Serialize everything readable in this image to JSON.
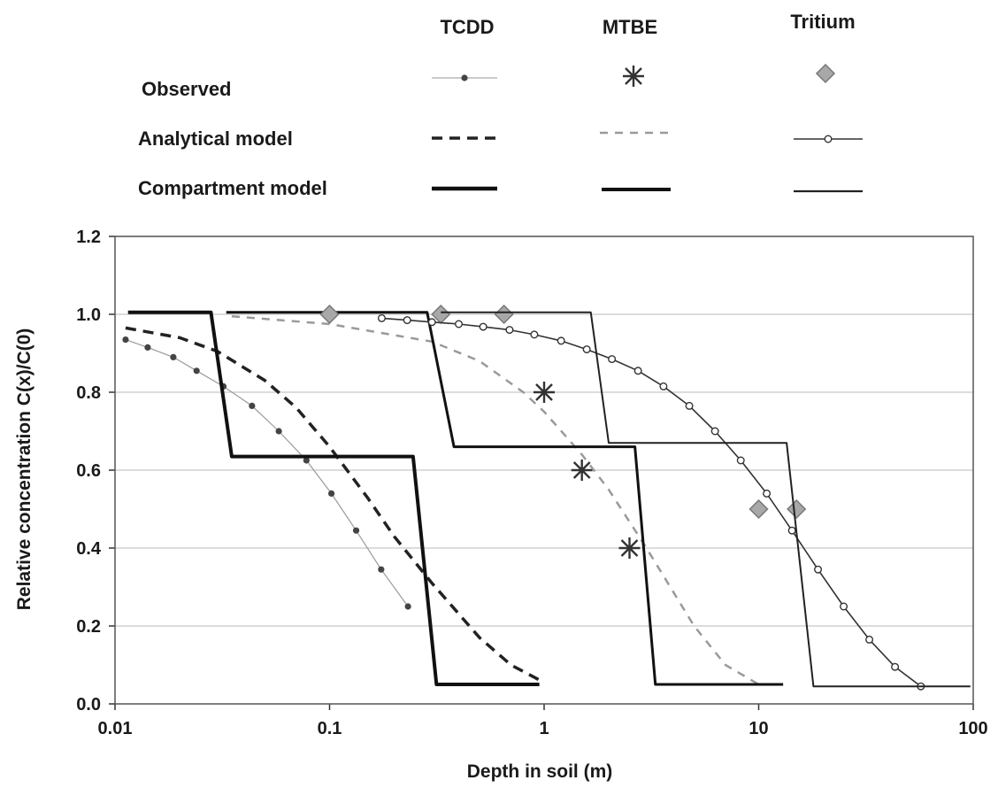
{
  "chart_data": {
    "type": "line",
    "xlabel": "Depth in soil (m)",
    "ylabel": "Relative concentration C(x)/C(0)",
    "x_scale": "log",
    "xlim": [
      0.01,
      100
    ],
    "ylim": [
      0.0,
      1.2
    ],
    "x_ticks": [
      "0.01",
      "0.1",
      "1",
      "10",
      "100"
    ],
    "y_ticks": [
      "0.0",
      "0.2",
      "0.4",
      "0.6",
      "0.8",
      "1.0",
      "1.2"
    ],
    "grid": "horizontal",
    "legend": {
      "placement": "top",
      "columns": [
        "TCDD",
        "MTBE",
        "Tritium"
      ],
      "rows": [
        "Observed",
        "Analytical model",
        "Compartment model"
      ]
    },
    "series": [
      {
        "compound": "TCDD",
        "kind": "Observed",
        "color": "#555555",
        "x": [
          0.0112,
          0.0142,
          0.0187,
          0.024,
          0.032,
          0.0435,
          0.058,
          0.078,
          0.102,
          0.133,
          0.174,
          0.232
        ],
        "y": [
          0.935,
          0.915,
          0.89,
          0.855,
          0.815,
          0.765,
          0.7,
          0.625,
          0.54,
          0.445,
          0.345,
          0.25
        ]
      },
      {
        "compound": "TCDD",
        "kind": "Analytical model",
        "color": "#222222",
        "x": [
          0.0112,
          0.02,
          0.03,
          0.05,
          0.07,
          0.1,
          0.15,
          0.2,
          0.3,
          0.5,
          0.7,
          1.0
        ],
        "y": [
          0.965,
          0.94,
          0.905,
          0.83,
          0.76,
          0.66,
          0.53,
          0.43,
          0.31,
          0.17,
          0.1,
          0.055
        ]
      },
      {
        "compound": "TCDD",
        "kind": "Compartment model",
        "color": "#111111",
        "x": [
          0.0115,
          0.028,
          0.035,
          0.245,
          0.315,
          0.95
        ],
        "y": [
          1.005,
          1.005,
          0.635,
          0.635,
          0.05,
          0.05
        ]
      },
      {
        "compound": "MTBE",
        "kind": "Observed",
        "color": "#333333",
        "x": [
          1.0,
          1.5,
          2.5
        ],
        "y": [
          0.8,
          0.6,
          0.4
        ]
      },
      {
        "compound": "MTBE",
        "kind": "Analytical model",
        "color": "#9a9a9a",
        "x": [
          0.035,
          0.1,
          0.3,
          0.5,
          0.8,
          1.0,
          1.5,
          2.0,
          3.0,
          5.0,
          7.0,
          10.0
        ],
        "y": [
          0.995,
          0.975,
          0.93,
          0.88,
          0.8,
          0.75,
          0.64,
          0.55,
          0.4,
          0.2,
          0.1,
          0.05
        ]
      },
      {
        "compound": "MTBE",
        "kind": "Compartment model",
        "color": "#111111",
        "x": [
          0.033,
          0.285,
          0.38,
          2.65,
          3.3,
          13.0
        ],
        "y": [
          1.005,
          1.005,
          0.66,
          0.66,
          0.05,
          0.05
        ]
      },
      {
        "compound": "Tritium",
        "kind": "Observed",
        "color": "#999999",
        "x": [
          0.1,
          0.33,
          0.65,
          10.0,
          15.0
        ],
        "y": [
          1.0,
          1.0,
          1.0,
          0.5,
          0.5
        ]
      },
      {
        "compound": "Tritium",
        "kind": "Analytical model",
        "color": "#333333",
        "x": [
          0.175,
          0.23,
          0.3,
          0.4,
          0.52,
          0.69,
          0.9,
          1.2,
          1.58,
          2.07,
          2.74,
          3.6,
          4.75,
          6.26,
          8.25,
          10.9,
          14.3,
          18.9,
          24.9,
          32.8,
          43.2,
          57.0
        ],
        "y": [
          0.99,
          0.985,
          0.98,
          0.975,
          0.968,
          0.96,
          0.948,
          0.932,
          0.91,
          0.885,
          0.855,
          0.815,
          0.765,
          0.7,
          0.625,
          0.54,
          0.445,
          0.345,
          0.25,
          0.165,
          0.095,
          0.045
        ]
      },
      {
        "compound": "Tritium",
        "kind": "Compartment model",
        "color": "#222222",
        "x": [
          0.33,
          1.65,
          2.0,
          13.5,
          18.0,
          97.0
        ],
        "y": [
          1.005,
          1.005,
          0.67,
          0.67,
          0.045,
          0.045
        ]
      }
    ]
  }
}
